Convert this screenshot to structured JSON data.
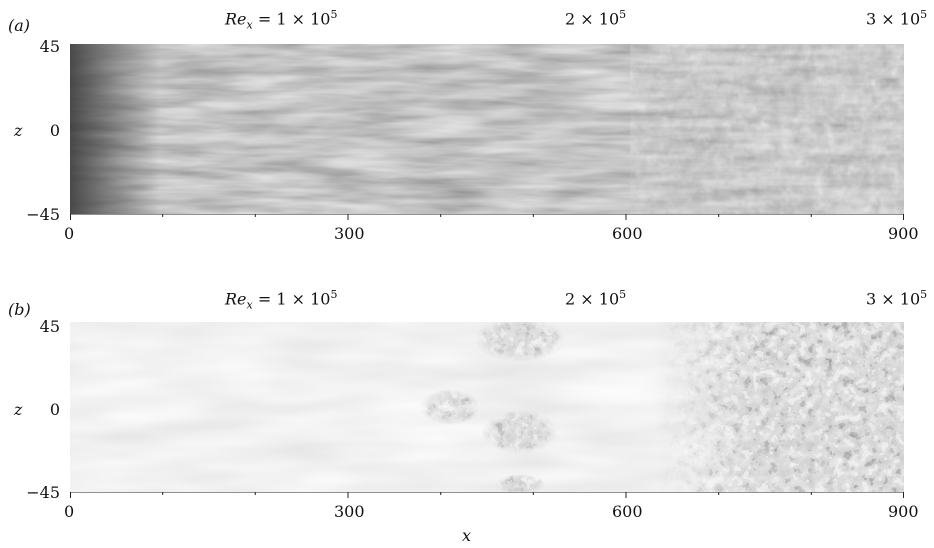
{
  "figure": {
    "panels": [
      {
        "tag": "(a)",
        "re_labels": {
          "first_prefix": "Re",
          "first_sub": "x",
          "first_eq": " = 1 × 10",
          "first_exp": "5",
          "second": "2 × 10",
          "second_exp": "5",
          "third": "3 × 10",
          "third_exp": "5"
        },
        "y_axis": {
          "label": "z",
          "ticks": [
            "45",
            "0",
            "−45"
          ]
        },
        "x_axis": {
          "ticks": [
            "0",
            "300",
            "600",
            "900"
          ]
        }
      },
      {
        "tag": "(b)",
        "re_labels": {
          "first_prefix": "Re",
          "first_sub": "x",
          "first_eq": " = 1 × 10",
          "first_exp": "5",
          "second": "2 × 10",
          "second_exp": "5",
          "third": "3 × 10",
          "third_exp": "5"
        },
        "y_axis": {
          "label": "z",
          "ticks": [
            "45",
            "0",
            "−45"
          ]
        },
        "x_axis": {
          "ticks": [
            "0",
            "300",
            "600",
            "900"
          ]
        }
      }
    ],
    "x_label": "x"
  },
  "chart_data": [
    {
      "type": "heatmap",
      "panel": "(a)",
      "x_range": [
        0,
        900
      ],
      "z_range": [
        -45,
        45
      ],
      "colormap": "grayscale",
      "description_source": "streaks"
    },
    {
      "type": "heatmap",
      "panel": "(b)",
      "x_range": [
        0,
        900
      ],
      "z_range": [
        -45,
        45
      ],
      "colormap": "grayscale",
      "description_source": "turbulent-spots"
    }
  ]
}
